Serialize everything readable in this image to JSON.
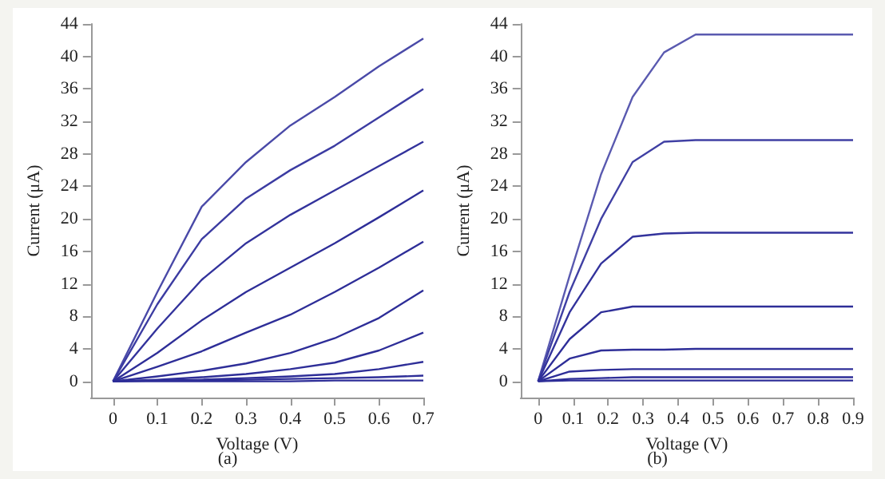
{
  "chart_data": [
    {
      "type": "line",
      "xlabel": "Voltage (V)",
      "ylabel": "Current (μA)",
      "annotations": [
        "(a)"
      ],
      "marker": "none",
      "grid": false,
      "x": [
        0,
        0.1,
        0.2,
        0.3,
        0.4,
        0.5,
        0.6,
        0.7
      ],
      "xlim": [
        -0.05,
        0.7
      ],
      "xticks": [
        0,
        0.1,
        0.2,
        0.3,
        0.4,
        0.5,
        0.6,
        0.7
      ],
      "ylim": [
        -2,
        44
      ],
      "yticks": [
        0,
        4,
        8,
        12,
        16,
        20,
        24,
        28,
        32,
        36,
        40,
        44
      ],
      "series": [
        {
          "color": "#4a4aa8",
          "values": [
            0,
            11,
            21.5,
            27,
            31.5,
            35,
            38.8,
            42.2
          ]
        },
        {
          "color": "#3c3ca2",
          "values": [
            0,
            9.5,
            17.5,
            22.5,
            26,
            29,
            32.5,
            36
          ]
        },
        {
          "color": "#33339c",
          "values": [
            0,
            6.5,
            12.5,
            17,
            20.5,
            23.5,
            26.5,
            29.5
          ]
        },
        {
          "color": "#2e2e98",
          "values": [
            0,
            3.5,
            7.5,
            11,
            14,
            17,
            20.2,
            23.5
          ]
        },
        {
          "color": "#2e2e98",
          "values": [
            0,
            1.8,
            3.7,
            6,
            8.2,
            11,
            14,
            17.2
          ]
        },
        {
          "color": "#2e2e98",
          "values": [
            0,
            0.6,
            1.3,
            2.2,
            3.5,
            5.3,
            7.8,
            11.2
          ]
        },
        {
          "color": "#2e2e98",
          "values": [
            0,
            0.2,
            0.5,
            0.9,
            1.5,
            2.3,
            3.8,
            6
          ]
        },
        {
          "color": "#2e2e98",
          "values": [
            0,
            0.1,
            0.2,
            0.4,
            0.6,
            0.9,
            1.5,
            2.4
          ]
        },
        {
          "color": "#2e2e98",
          "values": [
            0,
            0.1,
            0.1,
            0.2,
            0.3,
            0.4,
            0.5,
            0.7
          ]
        },
        {
          "color": "#2e2e98",
          "values": [
            0,
            0,
            0,
            0,
            0,
            0.1,
            0.1,
            0.1
          ]
        }
      ]
    },
    {
      "type": "line",
      "xlabel": "Voltage (V)",
      "ylabel": "Current (μA)",
      "annotations": [
        "(b)"
      ],
      "marker": "none",
      "grid": false,
      "x": [
        0,
        0.09,
        0.18,
        0.27,
        0.36,
        0.45,
        0.9
      ],
      "xlim": [
        -0.05,
        0.9
      ],
      "xticks": [
        0,
        0.1,
        0.2,
        0.3,
        0.4,
        0.5,
        0.6,
        0.7,
        0.8,
        0.9
      ],
      "ylim": [
        -2,
        44
      ],
      "yticks": [
        0,
        4,
        8,
        12,
        16,
        20,
        24,
        28,
        32,
        36,
        40,
        44
      ],
      "series": [
        {
          "color": "#5a5ab0",
          "values": [
            0,
            13,
            25.5,
            35,
            40.5,
            42.7,
            42.7
          ]
        },
        {
          "color": "#4040a4",
          "values": [
            0,
            11,
            20,
            27,
            29.5,
            29.7,
            29.7
          ]
        },
        {
          "color": "#33339c",
          "values": [
            0,
            8.5,
            14.5,
            17.8,
            18.2,
            18.3,
            18.3
          ]
        },
        {
          "color": "#2e2e98",
          "values": [
            0,
            5.2,
            8.5,
            9.2,
            9.2,
            9.2,
            9.2
          ]
        },
        {
          "color": "#2e2e98",
          "values": [
            0,
            2.8,
            3.8,
            3.9,
            3.9,
            4,
            4
          ]
        },
        {
          "color": "#2e2e98",
          "values": [
            0,
            1.2,
            1.4,
            1.5,
            1.5,
            1.5,
            1.5
          ]
        },
        {
          "color": "#2e2e98",
          "values": [
            0,
            0.3,
            0.4,
            0.5,
            0.5,
            0.5,
            0.5
          ]
        },
        {
          "color": "#2e2e98",
          "values": [
            0,
            0.1,
            0.1,
            0.1,
            0.1,
            0.1,
            0.1
          ]
        }
      ]
    }
  ]
}
